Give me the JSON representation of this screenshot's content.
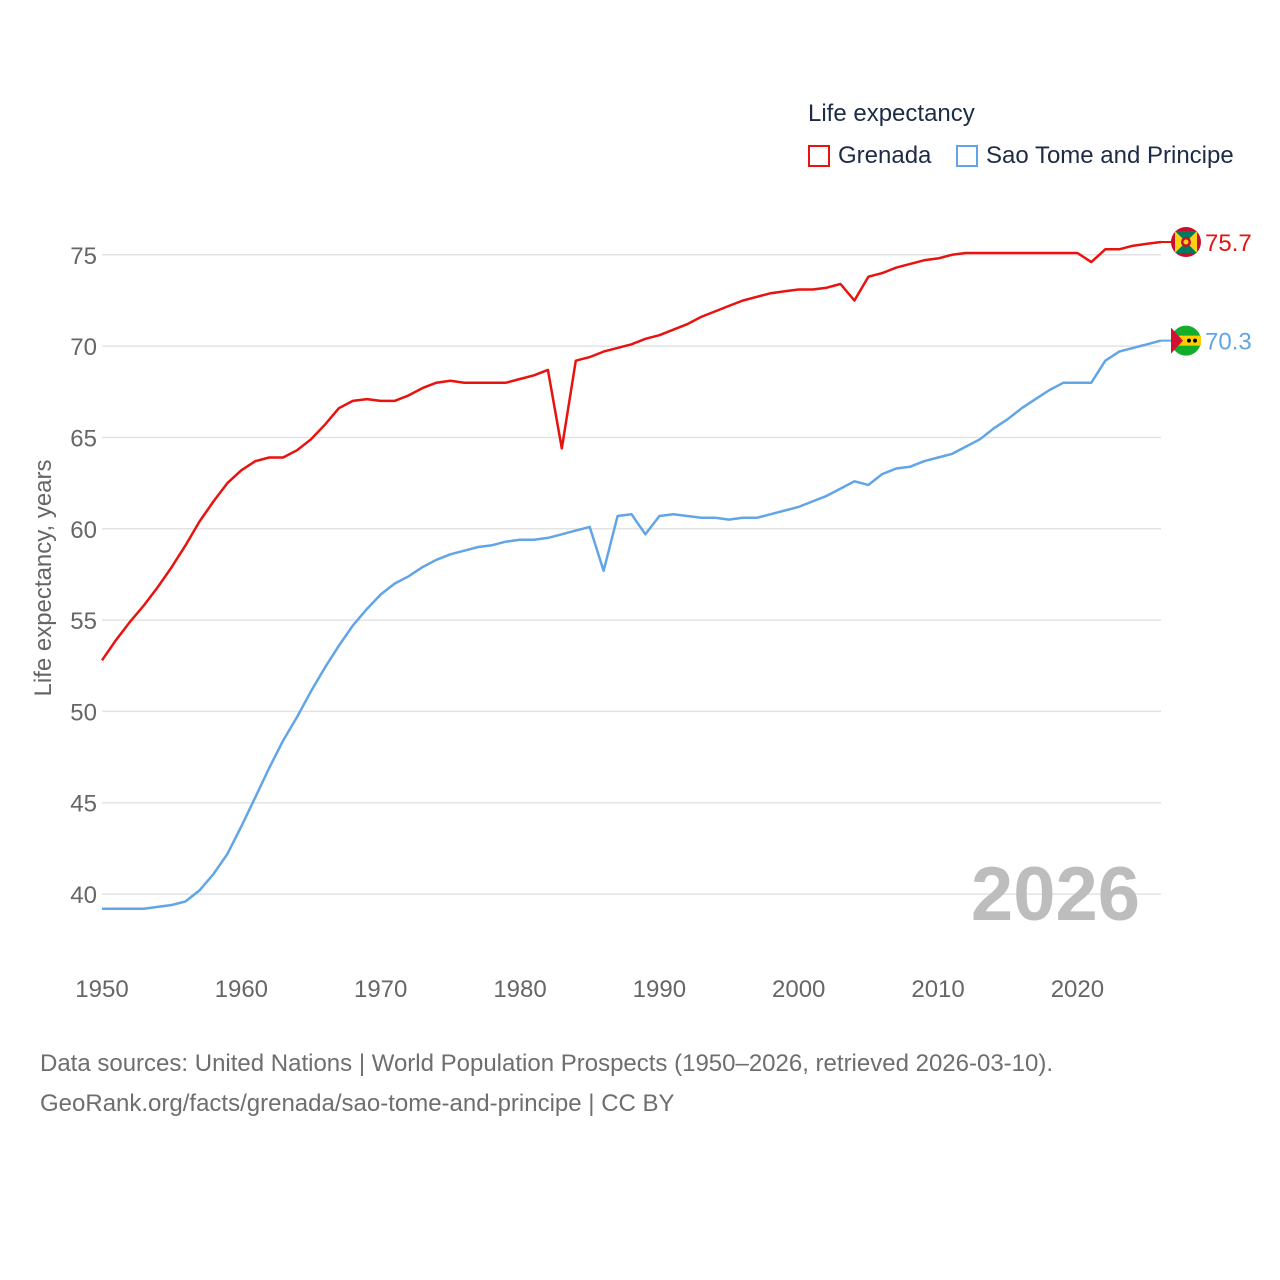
{
  "chart_data": {
    "type": "line",
    "legend": {
      "title": "Life expectancy",
      "placement": "top-right"
    },
    "ylabel": "Life expectancy, years",
    "xlabel": "",
    "xlim": [
      1950,
      2026
    ],
    "ylim": [
      36.5,
      78
    ],
    "xticks": [
      1950,
      1960,
      1970,
      1980,
      1990,
      2000,
      2010,
      2020
    ],
    "yticks": [
      40,
      45,
      50,
      55,
      60,
      65,
      70,
      75
    ],
    "watermark_year": "2026",
    "x": [
      1950,
      1951,
      1952,
      1953,
      1954,
      1955,
      1956,
      1957,
      1958,
      1959,
      1960,
      1961,
      1962,
      1963,
      1964,
      1965,
      1966,
      1967,
      1968,
      1969,
      1970,
      1971,
      1972,
      1973,
      1974,
      1975,
      1976,
      1977,
      1978,
      1979,
      1980,
      1981,
      1982,
      1983,
      1984,
      1985,
      1986,
      1987,
      1988,
      1989,
      1990,
      1991,
      1992,
      1993,
      1994,
      1995,
      1996,
      1997,
      1998,
      1999,
      2000,
      2001,
      2002,
      2003,
      2004,
      2005,
      2006,
      2007,
      2008,
      2009,
      2010,
      2011,
      2012,
      2013,
      2014,
      2015,
      2016,
      2017,
      2018,
      2019,
      2020,
      2021,
      2022,
      2023,
      2024,
      2025,
      2026
    ],
    "series": [
      {
        "name": "Grenada",
        "color": "#e8120f",
        "end_label": "75.7",
        "values": [
          52.8,
          53.9,
          54.9,
          55.8,
          56.8,
          57.9,
          59.1,
          60.4,
          61.5,
          62.5,
          63.2,
          63.7,
          63.9,
          63.9,
          64.3,
          64.9,
          65.7,
          66.6,
          67.0,
          67.1,
          67.0,
          67.0,
          67.3,
          67.7,
          68.0,
          68.1,
          68.0,
          68.0,
          68.0,
          68.0,
          68.2,
          68.4,
          68.7,
          64.4,
          69.2,
          69.4,
          69.7,
          69.9,
          70.1,
          70.4,
          70.6,
          70.9,
          71.2,
          71.6,
          71.9,
          72.2,
          72.5,
          72.7,
          72.9,
          73.0,
          73.1,
          73.1,
          73.2,
          73.4,
          72.5,
          73.8,
          74.0,
          74.3,
          74.5,
          74.7,
          74.8,
          75.0,
          75.1,
          75.1,
          75.1,
          75.1,
          75.1,
          75.1,
          75.1,
          75.1,
          75.1,
          74.6,
          75.3,
          75.3,
          75.5,
          75.6,
          75.7
        ]
      },
      {
        "name": "Sao Tome and Principe",
        "color": "#61a5e7",
        "end_label": "70.3",
        "values": [
          39.2,
          39.2,
          39.2,
          39.2,
          39.3,
          39.4,
          39.6,
          40.2,
          41.1,
          42.2,
          43.7,
          45.3,
          46.9,
          48.4,
          49.7,
          51.1,
          52.4,
          53.6,
          54.7,
          55.6,
          56.4,
          57.0,
          57.4,
          57.9,
          58.3,
          58.6,
          58.8,
          59.0,
          59.1,
          59.3,
          59.4,
          59.4,
          59.5,
          59.7,
          59.9,
          60.1,
          57.7,
          60.7,
          60.8,
          59.7,
          60.7,
          60.8,
          60.7,
          60.6,
          60.6,
          60.5,
          60.6,
          60.6,
          60.8,
          61.0,
          61.2,
          61.5,
          61.8,
          62.2,
          62.6,
          62.4,
          63.0,
          63.3,
          63.4,
          63.7,
          63.9,
          64.1,
          64.5,
          64.9,
          65.5,
          66.0,
          66.6,
          67.1,
          67.6,
          68.0,
          68.0,
          68.0,
          69.2,
          69.7,
          69.9,
          70.1,
          70.3
        ]
      }
    ]
  },
  "source_line1": "Data sources: United Nations | World Population Prospects (1950–2026, retrieved 2026-03-10).",
  "source_line2": "GeoRank.org/facts/grenada/sao-tome-and-principe | CC BY"
}
